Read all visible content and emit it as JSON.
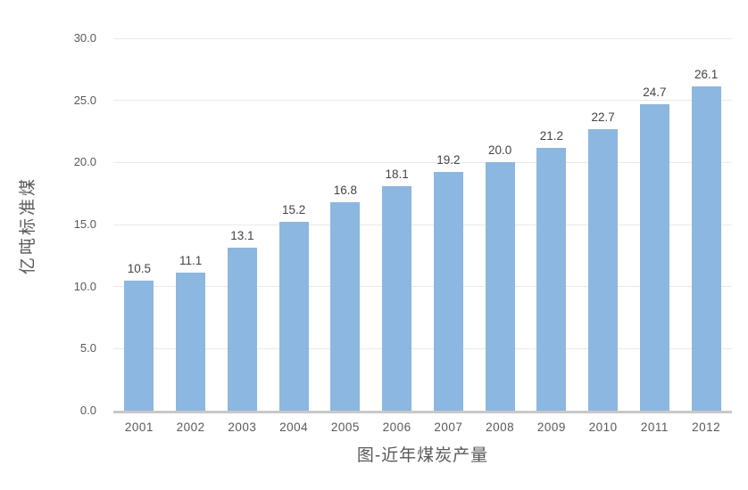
{
  "chart_data": {
    "type": "bar",
    "title": "图-近年煤炭产量",
    "ylabel": "亿吨标准煤",
    "xlabel": "",
    "categories": [
      "2001",
      "2002",
      "2003",
      "2004",
      "2005",
      "2006",
      "2007",
      "2008",
      "2009",
      "2010",
      "2011",
      "2012"
    ],
    "values": [
      10.5,
      11.1,
      13.1,
      15.2,
      16.8,
      18.1,
      19.2,
      20.0,
      21.2,
      22.7,
      24.7,
      26.1
    ],
    "data_labels": [
      "10.5",
      "11.1",
      "13.1",
      "15.2",
      "16.8",
      "18.1",
      "19.2",
      "20.0",
      "21.2",
      "22.7",
      "24.7",
      "26.1"
    ],
    "ylim": [
      0,
      30
    ],
    "ytick_step": 5,
    "ytick_labels": [
      "0.0",
      "5.0",
      "10.0",
      "15.0",
      "20.0",
      "25.0",
      "30.0"
    ],
    "grid": true,
    "legend": false
  },
  "colors": {
    "bar_fill": "#8CB7E0",
    "gridline": "#E9E9E9",
    "axis_line": "#C8C8C8",
    "tick_text": "#595959",
    "data_label_text": "#444444",
    "title_text": "#595959",
    "background": "#FFFFFF"
  }
}
